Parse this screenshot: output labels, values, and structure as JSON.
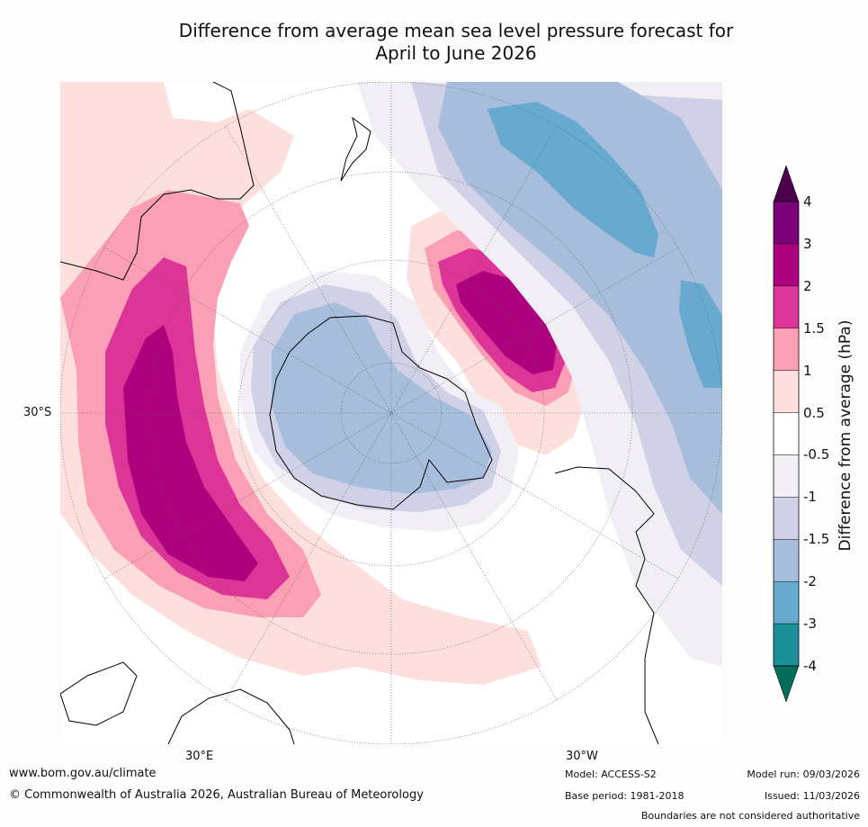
{
  "title_line1": "Difference from average mean sea level pressure forecast for",
  "title_line2": "April to June 2026",
  "map": {
    "lat_label": "30°S",
    "lon_labels": [
      "30°E",
      "30°W"
    ]
  },
  "colorbar": {
    "label": "Difference from average (hPa)",
    "ticks": [
      "4",
      "3",
      "2",
      "1.5",
      "1",
      "0.5",
      "-0.5",
      "-1",
      "-1.5",
      "-2",
      "-3",
      "-4"
    ],
    "bins": [
      {
        "range": "3 to 4",
        "color": "#7a0177"
      },
      {
        "range": "2 to 3",
        "color": "#ae017e"
      },
      {
        "range": "1.5 to 2",
        "color": "#dd3497"
      },
      {
        "range": "1 to 1.5",
        "color": "#fa9fb5"
      },
      {
        "range": "0.5 to 1",
        "color": "#fde0dd"
      },
      {
        "range": "-0.5 to 0.5",
        "color": "#ffffff"
      },
      {
        "range": "-1 to -0.5",
        "color": "#f1eef6"
      },
      {
        "range": "-1.5 to -1",
        "color": "#d0d1e6"
      },
      {
        "range": "-2 to -1.5",
        "color": "#a6bddb"
      },
      {
        "range": "-3 to -2",
        "color": "#67a9cf"
      },
      {
        "range": "-4 to -3",
        "color": "#1c9099"
      }
    ],
    "over_color": "#4d004b",
    "under_color": "#016c59"
  },
  "footer": {
    "website": "www.bom.gov.au/climate",
    "copyright": "© Commonwealth of Australia 2026, Australian Bureau of Meteorology",
    "model": "Model: ACCESS-S2",
    "base_period": "Base period: 1981-2018",
    "model_run": "Model run: 09/03/2026",
    "issued": "Issued: 11/03/2026",
    "disclaimer": "Boundaries are not considered authoritative"
  }
}
